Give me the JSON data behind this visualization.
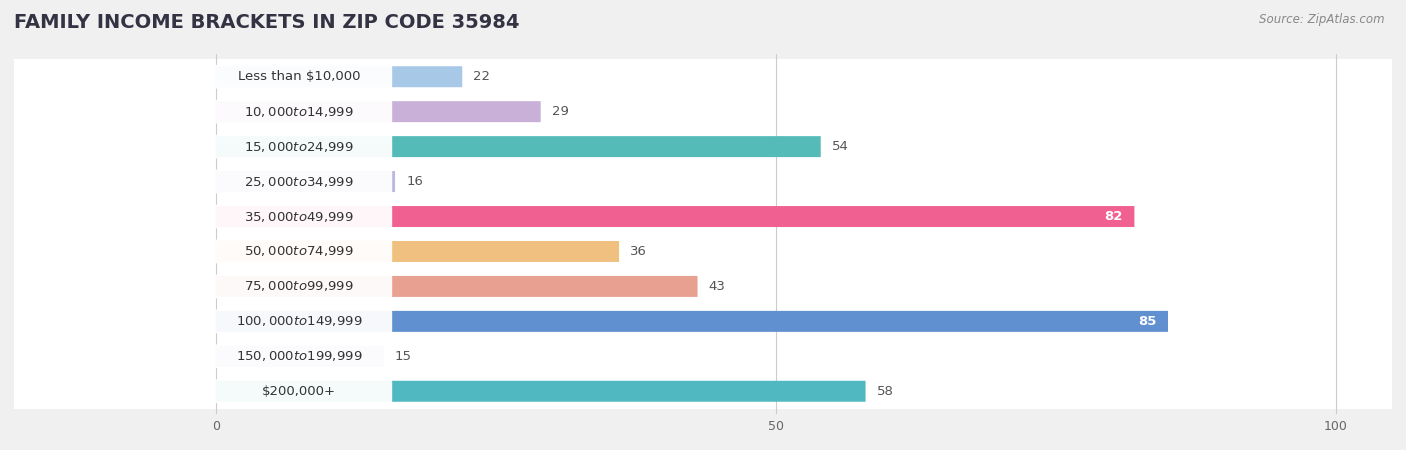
{
  "title": "FAMILY INCOME BRACKETS IN ZIP CODE 35984",
  "source": "Source: ZipAtlas.com",
  "categories": [
    "Less than $10,000",
    "$10,000 to $14,999",
    "$15,000 to $24,999",
    "$25,000 to $34,999",
    "$35,000 to $49,999",
    "$50,000 to $74,999",
    "$75,000 to $99,999",
    "$100,000 to $149,999",
    "$150,000 to $199,999",
    "$200,000+"
  ],
  "values": [
    22,
    29,
    54,
    16,
    82,
    36,
    43,
    85,
    15,
    58
  ],
  "bar_colors": [
    "#a8c8e8",
    "#c8b0d8",
    "#55bbb8",
    "#b8b8e0",
    "#f06090",
    "#f0c080",
    "#e8a090",
    "#6090d0",
    "#c0a8d0",
    "#50b8c0"
  ],
  "xlim": [
    -18,
    105
  ],
  "xticks": [
    0,
    50,
    100
  ],
  "background_color": "#f0f0f0",
  "title_fontsize": 14,
  "label_fontsize": 9.5,
  "value_fontsize": 9.5
}
